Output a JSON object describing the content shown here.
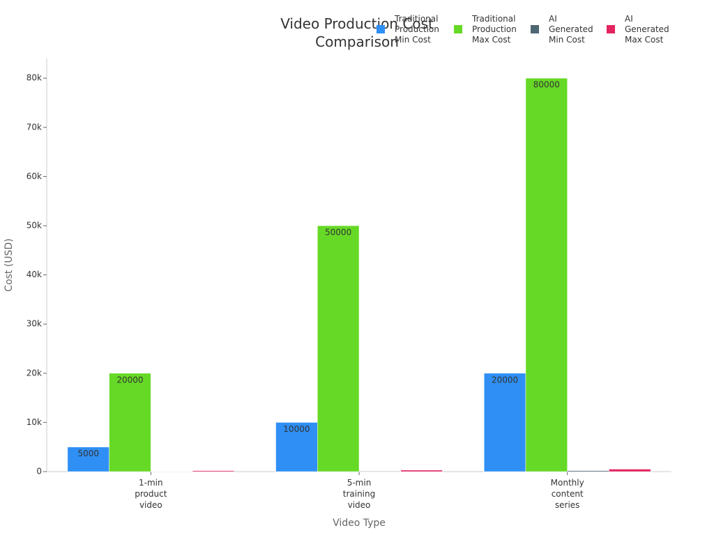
{
  "chart_data": {
    "type": "bar",
    "title": "Video Production Cost Comparison",
    "x_label": "Video Type",
    "y_label": "Cost (USD)",
    "categories": [
      "1-min product video",
      "5-min training video",
      "Monthly content series"
    ],
    "series": [
      {
        "name": "Traditional Production Min Cost",
        "color": "#2f8ff5",
        "values": [
          5000,
          10000,
          20000
        ]
      },
      {
        "name": "Traditional Production Max Cost",
        "color": "#66d926",
        "values": [
          20000,
          50000,
          80000
        ]
      },
      {
        "name": "AI Generated Min Cost",
        "color": "#4f6673",
        "values": [
          50,
          100,
          200
        ]
      },
      {
        "name": "AI Generated Max Cost",
        "color": "#e3245f",
        "values": [
          200,
          300,
          500
        ]
      }
    ],
    "ylim": [
      0,
      84000
    ],
    "yticks": [
      0,
      {
        "value": 10000,
        "label": "10k"
      },
      {
        "value": 20000,
        "label": "20k"
      },
      {
        "value": 30000,
        "label": "30k"
      },
      {
        "value": 40000,
        "label": "40k"
      },
      {
        "value": 50000,
        "label": "50k"
      },
      {
        "value": 60000,
        "label": "60k"
      },
      {
        "value": 70000,
        "label": "70k"
      },
      {
        "value": 80000,
        "label": "80k"
      }
    ],
    "grid": false,
    "legend": "top-right"
  }
}
